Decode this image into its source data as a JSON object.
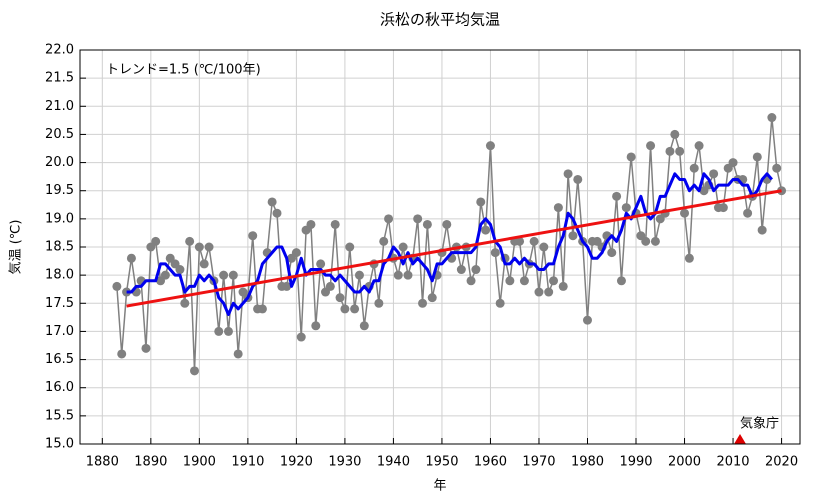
{
  "chart_data": {
    "type": "line",
    "title": "浜松の秋平均気温",
    "xlabel": "年",
    "ylabel": "気温 (℃)",
    "annotation": "トレンド=1.5 (℃/100年)",
    "source": "気象庁",
    "xlim": [
      1875.4,
      2023.8
    ],
    "ylim": [
      15,
      22
    ],
    "xticks": [
      1880,
      1890,
      1900,
      1910,
      1920,
      1930,
      1940,
      1950,
      1960,
      1970,
      1980,
      1990,
      2000,
      2010,
      2020
    ],
    "yticks": [
      {
        "value": 15,
        "label": "15.0"
      },
      15.5,
      {
        "value": 16,
        "label": "16.0"
      },
      16.5,
      {
        "value": 17,
        "label": "17.0"
      },
      17.5,
      {
        "value": 18,
        "label": "18.0"
      },
      18.5,
      {
        "value": 19,
        "label": "19.0"
      },
      19.5,
      {
        "value": 20,
        "label": "20.0"
      },
      20.5,
      {
        "value": 21,
        "label": "21.0"
      },
      21.5,
      {
        "value": 22,
        "label": "22.0"
      }
    ],
    "grid": true,
    "series": [
      {
        "color": "#808080",
        "markers": true,
        "width": 1.5,
        "x": [
          1883,
          1884,
          1885,
          1886,
          1887,
          1888,
          1889,
          1890,
          1891,
          1892,
          1893,
          1894,
          1895,
          1896,
          1897,
          1898,
          1899,
          1900,
          1901,
          1902,
          1903,
          1904,
          1905,
          1906,
          1907,
          1908,
          1909,
          1910,
          1911,
          1912,
          1913,
          1914,
          1915,
          1916,
          1917,
          1918,
          1919,
          1920,
          1921,
          1922,
          1923,
          1924,
          1925,
          1926,
          1927,
          1928,
          1929,
          1930,
          1931,
          1932,
          1933,
          1934,
          1935,
          1936,
          1937,
          1938,
          1939,
          1940,
          1941,
          1942,
          1943,
          1944,
          1945,
          1946,
          1947,
          1948,
          1949,
          1950,
          1951,
          1952,
          1953,
          1954,
          1955,
          1956,
          1957,
          1958,
          1959,
          1960,
          1961,
          1962,
          1963,
          1964,
          1965,
          1966,
          1967,
          1968,
          1969,
          1970,
          1971,
          1972,
          1973,
          1974,
          1975,
          1976,
          1977,
          1978,
          1979,
          1980,
          1981,
          1982,
          1983,
          1984,
          1985,
          1986,
          1987,
          1988,
          1989,
          1990,
          1991,
          1992,
          1993,
          1994,
          1995,
          1996,
          1997,
          1998,
          1999,
          2000,
          2001,
          2002,
          2003,
          2004,
          2005,
          2006,
          2007,
          2008,
          2009,
          2010,
          2011,
          2012,
          2013,
          2014,
          2015,
          2016,
          2017,
          2018,
          2019,
          2020
        ],
        "values": [
          17.8,
          16.6,
          17.7,
          18.3,
          17.7,
          17.9,
          16.7,
          18.5,
          18.6,
          17.9,
          18.0,
          18.3,
          18.2,
          18.1,
          17.5,
          18.6,
          16.3,
          18.5,
          18.2,
          18.5,
          17.9,
          17.0,
          18.0,
          17.0,
          18.0,
          16.6,
          17.7,
          17.6,
          18.7,
          17.4,
          17.4,
          18.4,
          19.3,
          19.1,
          17.8,
          17.8,
          18.3,
          18.4,
          16.9,
          18.8,
          18.9,
          17.1,
          18.2,
          17.7,
          17.8,
          18.9,
          17.6,
          17.4,
          18.5,
          17.4,
          18.0,
          17.1,
          17.8,
          18.2,
          17.5,
          18.6,
          19.0,
          18.3,
          18.0,
          18.5,
          18.0,
          18.3,
          19.0,
          17.5,
          18.9,
          17.6,
          18.0,
          18.4,
          18.9,
          18.3,
          18.5,
          18.1,
          18.5,
          17.9,
          18.1,
          19.3,
          18.8,
          20.3,
          18.4,
          17.5,
          18.3,
          17.9,
          18.6,
          18.6,
          17.9,
          18.2,
          18.6,
          17.7,
          18.5,
          17.7,
          17.9,
          19.2,
          17.8,
          19.8,
          18.7,
          19.7,
          18.6,
          17.2,
          18.6,
          18.6,
          18.5,
          18.7,
          18.4,
          19.4,
          17.9,
          19.2,
          20.1,
          19.1,
          18.7,
          18.6,
          20.3,
          18.6,
          19.0,
          19.1,
          20.2,
          20.5,
          20.2,
          19.1,
          18.3,
          19.9,
          20.3,
          19.5,
          19.6,
          19.8,
          19.2,
          19.2,
          19.9,
          20.0,
          19.7,
          19.7,
          19.1,
          19.4,
          20.1,
          18.8,
          19.7,
          20.8,
          19.9,
          19.5
        ]
      },
      {
        "color": "#0000ee",
        "markers": false,
        "width": 3,
        "x": [
          1885,
          1886,
          1887,
          1888,
          1889,
          1890,
          1891,
          1892,
          1893,
          1894,
          1895,
          1896,
          1897,
          1898,
          1899,
          1900,
          1901,
          1902,
          1903,
          1904,
          1905,
          1906,
          1907,
          1908,
          1909,
          1910,
          1911,
          1912,
          1913,
          1914,
          1915,
          1916,
          1917,
          1918,
          1919,
          1920,
          1921,
          1922,
          1923,
          1924,
          1925,
          1926,
          1927,
          1928,
          1929,
          1930,
          1931,
          1932,
          1933,
          1934,
          1935,
          1936,
          1937,
          1938,
          1939,
          1940,
          1941,
          1942,
          1943,
          1944,
          1945,
          1946,
          1947,
          1948,
          1949,
          1950,
          1951,
          1952,
          1953,
          1954,
          1955,
          1956,
          1957,
          1958,
          1959,
          1960,
          1961,
          1962,
          1963,
          1964,
          1965,
          1966,
          1967,
          1968,
          1969,
          1970,
          1971,
          1972,
          1973,
          1974,
          1975,
          1976,
          1977,
          1978,
          1979,
          1980,
          1981,
          1982,
          1983,
          1984,
          1985,
          1986,
          1987,
          1988,
          1989,
          1990,
          1991,
          1992,
          1993,
          1994,
          1995,
          1996,
          1997,
          1998,
          1999,
          2000,
          2001,
          2002,
          2003,
          2004,
          2005,
          2006,
          2007,
          2008,
          2009,
          2010,
          2011,
          2012,
          2013,
          2014,
          2015,
          2016,
          2017,
          2018
        ],
        "values": [
          17.7,
          17.7,
          17.8,
          17.8,
          17.9,
          17.9,
          17.9,
          18.2,
          18.2,
          18.1,
          18.0,
          18.0,
          17.7,
          17.8,
          17.8,
          18.0,
          17.9,
          18.0,
          17.9,
          17.6,
          17.5,
          17.3,
          17.5,
          17.4,
          17.5,
          17.6,
          17.8,
          17.9,
          18.2,
          18.3,
          18.4,
          18.5,
          18.5,
          18.3,
          17.8,
          18.0,
          18.3,
          18.0,
          18.1,
          18.1,
          18.1,
          18.0,
          18.0,
          17.9,
          18.0,
          17.9,
          17.8,
          17.7,
          17.7,
          17.8,
          17.7,
          17.9,
          17.9,
          18.2,
          18.3,
          18.5,
          18.4,
          18.2,
          18.4,
          18.2,
          18.3,
          18.2,
          18.1,
          17.9,
          18.2,
          18.2,
          18.3,
          18.4,
          18.4,
          18.4,
          18.4,
          18.4,
          18.5,
          18.9,
          19.0,
          18.9,
          18.6,
          18.5,
          18.2,
          18.2,
          18.3,
          18.2,
          18.3,
          18.2,
          18.2,
          18.1,
          18.1,
          18.2,
          18.2,
          18.5,
          18.7,
          19.1,
          19.0,
          18.8,
          18.6,
          18.5,
          18.3,
          18.3,
          18.4,
          18.6,
          18.7,
          18.6,
          18.8,
          19.1,
          19.0,
          19.2,
          19.4,
          19.1,
          19.0,
          19.1,
          19.4,
          19.4,
          19.6,
          19.8,
          19.7,
          19.7,
          19.5,
          19.6,
          19.5,
          19.8,
          19.7,
          19.5,
          19.6,
          19.6,
          19.6,
          19.7,
          19.7,
          19.6,
          19.6,
          19.4,
          19.5,
          19.7,
          19.8,
          19.7
        ]
      },
      {
        "color": "#ee1111",
        "markers": false,
        "width": 3,
        "x": [
          1885,
          2020
        ],
        "values": [
          17.45,
          19.5
        ]
      }
    ]
  }
}
